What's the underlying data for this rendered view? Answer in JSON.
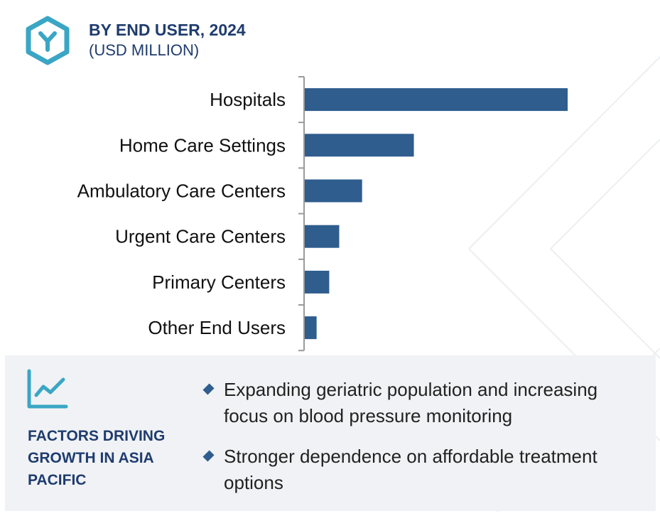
{
  "header": {
    "title": "BY END USER, 2024",
    "subtitle": "(USD MILLION)",
    "logo_icon": "hexagon-y-logo-icon",
    "logo_color": "#3aa6c4"
  },
  "chart_data": {
    "type": "bar",
    "orientation": "horizontal",
    "title": "BY END USER, 2024",
    "subtitle": "(USD MILLION)",
    "xlabel": "",
    "ylabel": "",
    "categories": [
      "Hospitals",
      "Home Care Settings",
      "Ambulatory Care Centers",
      "Urgent Care Centers",
      "Primary Centers",
      "Other End Users"
    ],
    "values": [
      100,
      41.5,
      21.8,
      13.1,
      9.3,
      4.5
    ],
    "xlim": [
      0,
      100
    ],
    "grid": false,
    "bar_color": "#2e5d8e"
  },
  "factors": {
    "icon": "trend-line-chart-icon",
    "title": "FACTORS DRIVING GROWTH IN ASIA PACIFIC",
    "bullets": [
      "Expanding geriatric population and increasing focus on blood pressure monitoring",
      "Stronger dependence on affordable treatment options"
    ],
    "bullet_color": "#2e5d8e"
  }
}
